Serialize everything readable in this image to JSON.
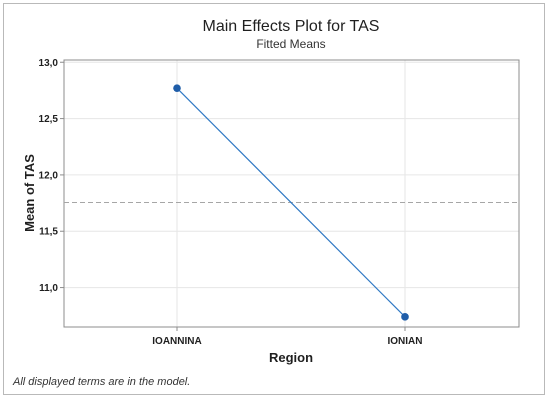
{
  "chart_data": {
    "type": "line",
    "title": "Main Effects Plot for TAS",
    "subtitle": "Fitted Means",
    "xlabel": "Region",
    "ylabel": "Mean of TAS",
    "categories": [
      "IOANNINA",
      "IONIAN"
    ],
    "series": [
      {
        "values": [
          12.77,
          10.74
        ],
        "color": "#2f78c4",
        "marker_color": "#1f5da8"
      }
    ],
    "overall_mean": 11.755,
    "ylim": [
      10.65,
      13.02
    ],
    "yticks": [
      11.0,
      11.5,
      12.0,
      12.5,
      13.0
    ],
    "ytick_labels": [
      "11,0",
      "11,5",
      "12,0",
      "12,5",
      "13,0"
    ],
    "grid": true,
    "footnote": "All displayed terms are in the model."
  }
}
